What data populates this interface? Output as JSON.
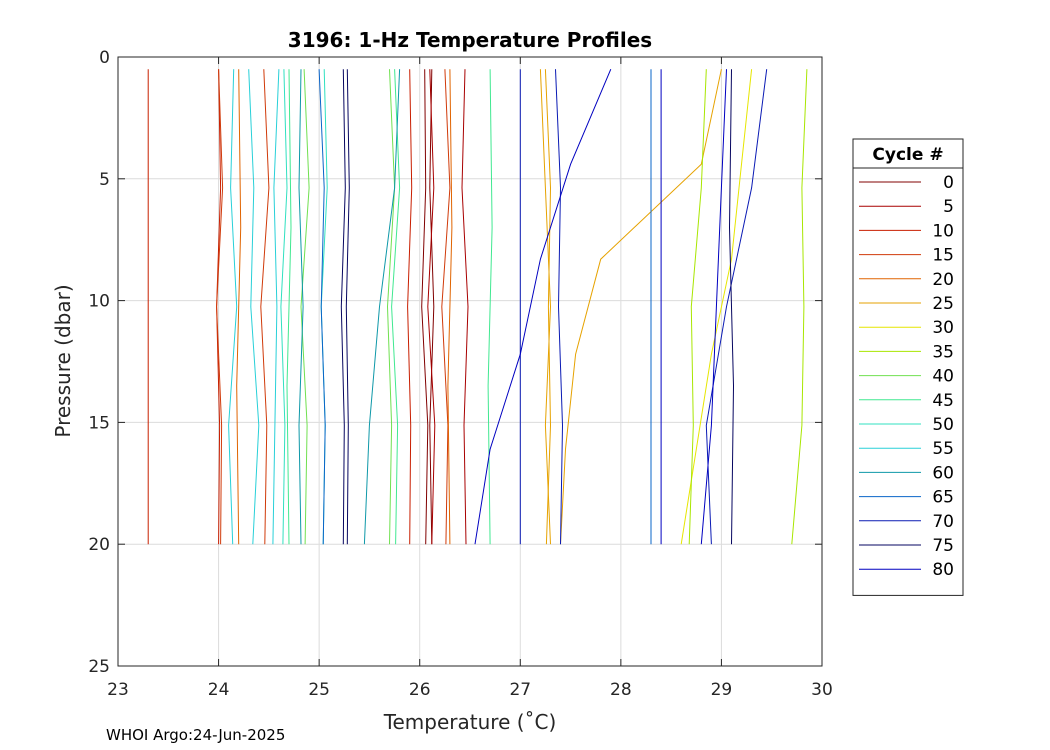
{
  "footer": "WHOI Argo:24-Jun-2025",
  "chart_data": {
    "type": "line",
    "title": "3196: 1-Hz Temperature Profiles",
    "xlabel": "Temperature (˚C)",
    "ylabel": "Pressure (dbar)",
    "xlim": [
      23,
      30
    ],
    "ylim": [
      0,
      25
    ],
    "y_reversed": true,
    "xticks": [
      "23",
      "24",
      "25",
      "26",
      "27",
      "28",
      "29",
      "30"
    ],
    "yticks": [
      "0",
      "5",
      "10",
      "15",
      "20",
      "25"
    ],
    "grid": true,
    "legend": {
      "title": "Cycle #",
      "placement": "right",
      "entries": [
        "0",
        "5",
        "10",
        "15",
        "20",
        "25",
        "30",
        "35",
        "40",
        "45",
        "50",
        "55",
        "60",
        "65",
        "70",
        "75",
        "80"
      ]
    },
    "legend_colors": [
      "#800000",
      "#a80000",
      "#c81e00",
      "#d03a0a",
      "#e06400",
      "#e6a200",
      "#e6e600",
      "#a8e600",
      "#70e050",
      "#40e890",
      "#30e0c0",
      "#28d0d8",
      "#0e98a8",
      "#0a64c8",
      "#0a1ab4",
      "#060660",
      "#0000c0"
    ],
    "series": [
      {
        "name": "0",
        "color": "#800000",
        "p": [
          0.5,
          20
        ],
        "t": [
          [
            26.05,
            26.06,
            26.02,
            26.08,
            26.06
          ],
          [
            26.12,
            26.1,
            26.14,
            26.1,
            26.12
          ]
        ]
      },
      {
        "name": "5",
        "color": "#a80000",
        "p": [
          0.5,
          20
        ],
        "t": [
          [
            26.1,
            26.14,
            26.08,
            26.15,
            26.12
          ],
          [
            26.45,
            26.42,
            26.48,
            26.44,
            26.46
          ]
        ]
      },
      {
        "name": "10",
        "color": "#c81e00",
        "p": [
          0.5,
          20
        ],
        "t": [
          [
            23.3,
            23.3,
            23.3,
            23.3,
            23.3
          ],
          [
            24.0,
            24.02,
            23.98,
            24.01,
            24.0
          ],
          [
            25.9,
            25.92,
            25.88,
            25.91,
            25.9
          ]
        ]
      },
      {
        "name": "15",
        "color": "#d03a0a",
        "p": [
          0.5,
          20
        ],
        "t": [
          [
            24.0,
            24.04,
            23.98,
            24.03,
            24.02
          ],
          [
            24.45,
            24.5,
            24.42,
            24.48,
            24.46
          ],
          [
            26.25,
            26.3,
            26.22,
            26.28,
            26.26
          ]
        ]
      },
      {
        "name": "20",
        "color": "#e06400",
        "p": [
          0.5,
          20
        ],
        "t": [
          [
            24.2,
            24.22,
            24.18,
            24.2
          ],
          [
            26.3,
            26.32,
            26.28,
            26.3
          ]
        ]
      },
      {
        "name": "25",
        "color": "#e6a200",
        "p": [
          0.5,
          20
        ],
        "t": [
          [
            29.0,
            28.8,
            27.8,
            27.55,
            27.45,
            27.4
          ],
          [
            27.2,
            27.25,
            27.3,
            27.25,
            27.3
          ],
          [
            27.25,
            27.3,
            27.28,
            27.3,
            27.26
          ]
        ]
      },
      {
        "name": "30",
        "color": "#e6e600",
        "p": [
          0.5,
          20
        ],
        "t": [
          [
            29.3,
            29.2,
            29.1,
            28.9,
            28.75,
            28.6
          ]
        ]
      },
      {
        "name": "35",
        "color": "#a8e600",
        "p": [
          0.5,
          20
        ],
        "t": [
          [
            29.85,
            29.8,
            29.82,
            29.8,
            29.7
          ],
          [
            28.85,
            28.8,
            28.7,
            28.72,
            28.68
          ]
        ]
      },
      {
        "name": "40",
        "color": "#70e050",
        "p": [
          0.5,
          20
        ],
        "t": [
          [
            24.85,
            24.9,
            24.82,
            24.88,
            24.86
          ],
          [
            25.7,
            25.75,
            25.68,
            25.72,
            25.7
          ]
        ]
      },
      {
        "name": "45",
        "color": "#40e890",
        "p": [
          0.5,
          20
        ],
        "t": [
          [
            24.7,
            24.72,
            24.68,
            24.7
          ],
          [
            25.75,
            25.8,
            25.72,
            25.78,
            25.76
          ],
          [
            26.7,
            26.72,
            26.68,
            26.7
          ]
        ]
      },
      {
        "name": "50",
        "color": "#30e0c0",
        "p": [
          0.5,
          20
        ],
        "t": [
          [
            24.65,
            24.68,
            24.62,
            24.66,
            24.64
          ],
          [
            25.05,
            25.08,
            25.02,
            25.06,
            25.04
          ]
        ]
      },
      {
        "name": "55",
        "color": "#28d0d8",
        "p": [
          0.5,
          20
        ],
        "t": [
          [
            24.15,
            24.12,
            24.18,
            24.1,
            24.14
          ],
          [
            24.3,
            24.35,
            24.32,
            24.4,
            24.34
          ],
          [
            24.6,
            24.55,
            24.58,
            24.56,
            24.54
          ]
        ]
      },
      {
        "name": "60",
        "color": "#0e98a8",
        "p": [
          0.5,
          20
        ],
        "t": [
          [
            25.8,
            25.75,
            25.6,
            25.5,
            25.45
          ],
          [
            24.82,
            24.8,
            24.84,
            24.8,
            24.82
          ]
        ]
      },
      {
        "name": "65",
        "color": "#0a64c8",
        "p": [
          0.5,
          20
        ],
        "t": [
          [
            25.0,
            25.05,
            25.02,
            25.06,
            25.04
          ],
          [
            28.3,
            28.3,
            28.3,
            28.3,
            28.3
          ]
        ]
      },
      {
        "name": "70",
        "color": "#0a1ab4",
        "p": [
          0.5,
          20
        ],
        "t": [
          [
            29.45,
            29.3,
            29.05,
            28.85,
            28.9
          ],
          [
            27.0,
            27.0,
            27.0,
            27.0,
            27.0
          ],
          [
            27.35,
            27.4,
            27.38,
            27.42,
            27.4
          ]
        ]
      },
      {
        "name": "75",
        "color": "#060660",
        "p": [
          0.5,
          20
        ],
        "t": [
          [
            25.24,
            25.26,
            25.22,
            25.25,
            25.24
          ],
          [
            25.28,
            25.3,
            25.27,
            25.29,
            25.28
          ],
          [
            29.1,
            29.08,
            29.12,
            29.1
          ]
        ]
      },
      {
        "name": "80",
        "color": "#0000c0",
        "p": [
          0.5,
          20
        ],
        "t": [
          [
            27.9,
            27.5,
            27.2,
            27.0,
            26.7,
            26.55
          ],
          [
            28.4,
            28.4,
            28.4,
            28.4,
            28.4
          ],
          [
            29.05,
            29.0,
            28.95,
            28.9,
            28.8
          ]
        ]
      }
    ]
  }
}
